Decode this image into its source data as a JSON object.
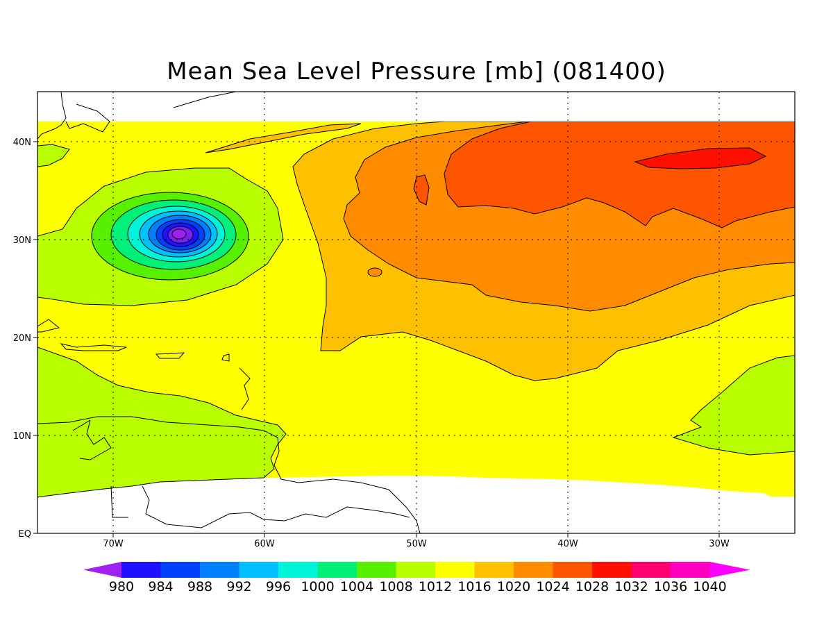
{
  "title": "Mean Sea Level Pressure [mb] (081400)",
  "map": {
    "x_ticks": [
      "70W",
      "60W",
      "50W",
      "40W",
      "30W"
    ],
    "y_ticks": [
      "EQ",
      "10N",
      "20N",
      "30N",
      "40N"
    ],
    "lon_range": [
      -75,
      -25
    ],
    "lat_range": [
      0,
      45
    ],
    "grid": "dotted"
  },
  "colorbar": {
    "labels": [
      "980",
      "984",
      "988",
      "992",
      "996",
      "1000",
      "1004",
      "1008",
      "1012",
      "1016",
      "1020",
      "1024",
      "1028",
      "1032",
      "1036",
      "1040"
    ],
    "colors": [
      "#a020f0",
      "#1f10ff",
      "#0040ff",
      "#0080ff",
      "#00c0ff",
      "#00f5d8",
      "#00f07a",
      "#56f000",
      "#baff00",
      "#ffff00",
      "#ffc000",
      "#ff8c00",
      "#ff5400",
      "#ff1000",
      "#ff0070",
      "#ff00c0",
      "#ff00ff"
    ]
  },
  "colors": {
    "land_outline": "#000000",
    "missing": "#ffffff"
  }
}
